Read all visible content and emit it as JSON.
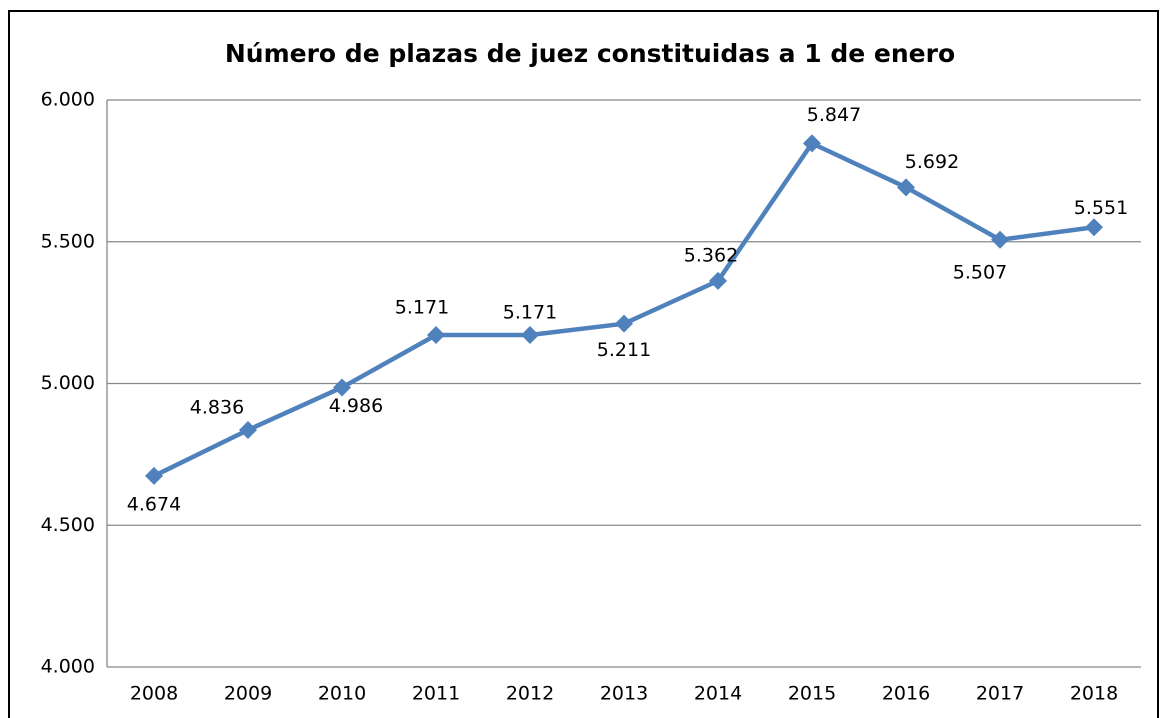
{
  "chart_data": {
    "type": "line",
    "title": "Número de plazas de juez constituidas a 1 de enero",
    "categories": [
      "2008",
      "2009",
      "2010",
      "2011",
      "2012",
      "2013",
      "2014",
      "2015",
      "2016",
      "2017",
      "2018"
    ],
    "series": [
      {
        "name": "Número de plazas de juez",
        "color": "#4f81bd",
        "values": [
          4674,
          4836,
          4986,
          5171,
          5171,
          5211,
          5362,
          5847,
          5692,
          5507,
          5551
        ],
        "value_labels": [
          "4.674",
          "4.836",
          "4.986",
          "5.171",
          "5.171",
          "5.211",
          "5.362",
          "5.847",
          "5.692",
          "5.507",
          "5.551"
        ]
      }
    ],
    "ylim": [
      4000,
      6000
    ],
    "yticks": [
      {
        "value": 4000,
        "label": "4.000"
      },
      {
        "value": 4500,
        "label": "4.500"
      },
      {
        "value": 5000,
        "label": "5.000"
      },
      {
        "value": 5500,
        "label": "5.500"
      },
      {
        "value": 6000,
        "label": "6.000"
      }
    ],
    "grid": true
  }
}
